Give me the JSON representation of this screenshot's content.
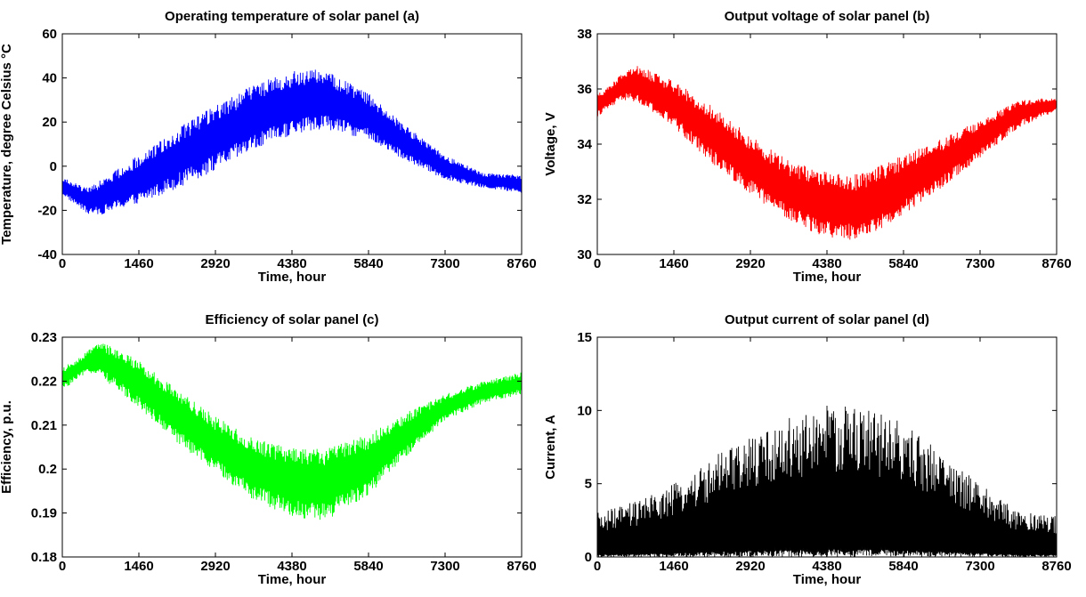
{
  "chart_data": [
    {
      "type": "line",
      "title": "Operating temperature of solar panel (a)",
      "xlabel": "Time, hour",
      "ylabel": "Temperature, degree Celsius °C",
      "xlim": [
        0,
        8760
      ],
      "ylim": [
        -40,
        60
      ],
      "xticks": [
        0,
        1460,
        2920,
        4380,
        5840,
        7300,
        8760
      ],
      "yticks": [
        -40,
        -20,
        0,
        20,
        40,
        60
      ],
      "grid": false,
      "series": [
        {
          "color": "#0000ff",
          "x": [
            0,
            500,
            730,
            1460,
            2190,
            2920,
            3650,
            4380,
            5000,
            5840,
            6570,
            7300,
            8030,
            8760
          ],
          "low": [
            -13,
            -22,
            -22,
            -17,
            -10,
            -2,
            7,
            14,
            17,
            12,
            2,
            -6,
            -10,
            -12
          ],
          "high": [
            -5,
            -10,
            -6,
            5,
            17,
            28,
            37,
            43,
            44,
            33,
            18,
            5,
            -3,
            -4
          ],
          "values": [
            -9,
            -16,
            -14,
            -6,
            3,
            13,
            22,
            28,
            30,
            22,
            10,
            0,
            -6,
            -8
          ]
        }
      ]
    },
    {
      "type": "line",
      "title": "Output voltage of solar panel (b)",
      "xlabel": "Time, hour",
      "ylabel": "Voltage, V",
      "xlim": [
        0,
        8760
      ],
      "ylim": [
        30,
        38
      ],
      "xticks": [
        0,
        1460,
        2920,
        4380,
        5840,
        7300,
        8760
      ],
      "yticks": [
        30,
        32,
        34,
        36,
        38
      ],
      "grid": false,
      "series": [
        {
          "color": "#ff0000",
          "x": [
            0,
            500,
            730,
            1460,
            2190,
            2920,
            3650,
            4380,
            5000,
            5840,
            6570,
            7300,
            8030,
            8760
          ],
          "low": [
            35.0,
            35.6,
            35.5,
            34.6,
            33.3,
            32.2,
            31.2,
            30.6,
            30.5,
            31.4,
            32.4,
            33.5,
            34.6,
            35.2
          ],
          "high": [
            35.8,
            36.6,
            36.9,
            36.3,
            35.4,
            34.3,
            33.4,
            33.0,
            32.9,
            33.6,
            34.2,
            34.9,
            35.6,
            35.7
          ],
          "values": [
            35.4,
            36.1,
            36.2,
            35.5,
            34.4,
            33.3,
            32.3,
            31.8,
            31.7,
            32.5,
            33.3,
            34.2,
            35.1,
            35.5
          ]
        }
      ]
    },
    {
      "type": "line",
      "title": "Efficiency of solar panel (c)",
      "xlabel": "Time, hour",
      "ylabel": "Efficiency, p.u.",
      "xlim": [
        0,
        8760
      ],
      "ylim": [
        0.18,
        0.23
      ],
      "xticks": [
        0,
        1460,
        2920,
        4380,
        5840,
        7300,
        8760
      ],
      "yticks": [
        0.18,
        0.19,
        0.2,
        0.21,
        0.22,
        0.23
      ],
      "grid": false,
      "series": [
        {
          "color": "#00ff00",
          "x": [
            0,
            500,
            730,
            1460,
            2190,
            2920,
            3650,
            4380,
            5000,
            5840,
            6570,
            7300,
            8030,
            8760
          ],
          "low": [
            0.218,
            0.222,
            0.221,
            0.214,
            0.206,
            0.199,
            0.193,
            0.189,
            0.188,
            0.194,
            0.203,
            0.211,
            0.215,
            0.217
          ],
          "high": [
            0.223,
            0.227,
            0.229,
            0.225,
            0.218,
            0.212,
            0.207,
            0.205,
            0.205,
            0.208,
            0.213,
            0.217,
            0.22,
            0.222
          ],
          "values": [
            0.22,
            0.225,
            0.225,
            0.22,
            0.212,
            0.205,
            0.2,
            0.197,
            0.196,
            0.201,
            0.208,
            0.214,
            0.218,
            0.22
          ]
        }
      ]
    },
    {
      "type": "line",
      "title": "Output current of solar panel (d)",
      "xlabel": "Time, hour",
      "ylabel": "Current, A",
      "xlim": [
        0,
        8760
      ],
      "ylim": [
        0,
        15
      ],
      "xticks": [
        0,
        1460,
        2920,
        4380,
        5840,
        7300,
        8760
      ],
      "yticks": [
        0,
        5,
        10,
        15
      ],
      "grid": false,
      "series": [
        {
          "color": "#000000",
          "x": [
            0,
            730,
            1460,
            2190,
            2920,
            3650,
            4380,
            5110,
            5840,
            6570,
            7300,
            8030,
            8760
          ],
          "low": [
            0,
            0,
            0,
            0,
            0,
            0,
            0,
            0,
            0,
            0,
            0,
            0,
            0
          ],
          "high": [
            3.0,
            3.8,
            5.0,
            6.8,
            8.2,
            9.5,
            10.5,
            10.3,
            9.2,
            7.2,
            5.0,
            3.2,
            2.8
          ],
          "values": [
            1.5,
            1.9,
            2.5,
            3.4,
            4.1,
            4.8,
            5.2,
            5.1,
            4.6,
            3.6,
            2.5,
            1.6,
            1.4
          ]
        }
      ]
    }
  ]
}
